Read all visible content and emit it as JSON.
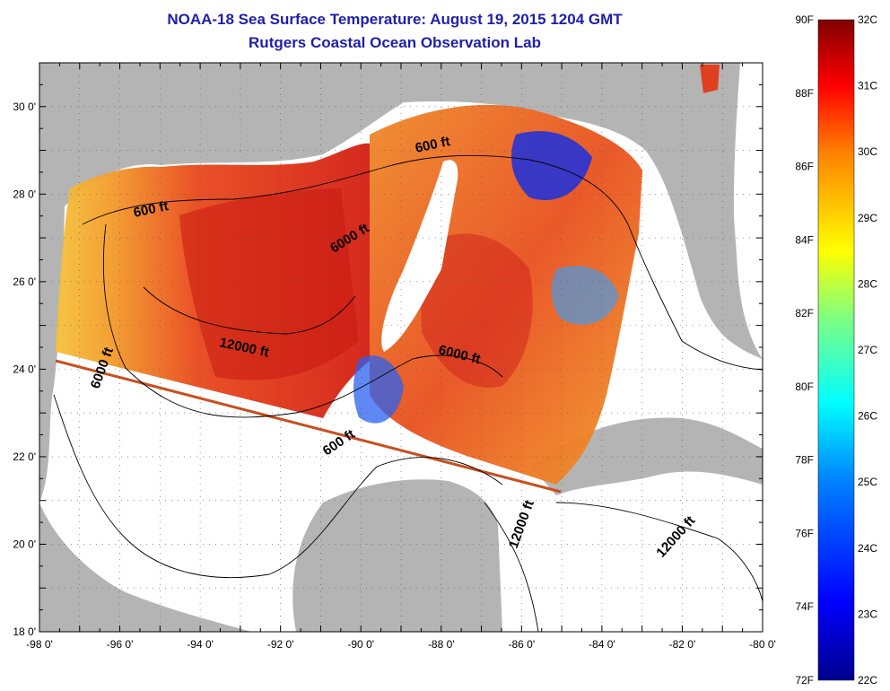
{
  "header": {
    "title": "NOAA-18 Sea Surface Temperature:  August 19, 2015 1204 GMT",
    "subtitle": "Rutgers Coastal Ocean Observation Lab"
  },
  "map": {
    "lon_range": [
      -98,
      -80
    ],
    "lat_range": [
      18,
      31
    ],
    "lon_ticks": [
      {
        "value": -98,
        "label": "-98 0'"
      },
      {
        "value": -96,
        "label": "-96 0'"
      },
      {
        "value": -94,
        "label": "-94 0'"
      },
      {
        "value": -92,
        "label": "-92 0'"
      },
      {
        "value": -90,
        "label": "-90 0'"
      },
      {
        "value": -88,
        "label": "-88 0'"
      },
      {
        "value": -86,
        "label": "-86 0'"
      },
      {
        "value": -84,
        "label": "-84 0'"
      },
      {
        "value": -82,
        "label": "-82 0'"
      },
      {
        "value": -80,
        "label": "-80 0'"
      }
    ],
    "lat_ticks": [
      {
        "value": 18,
        "label": "18 0'"
      },
      {
        "value": 20,
        "label": "20 0'"
      },
      {
        "value": 22,
        "label": "22 0'"
      },
      {
        "value": 24,
        "label": "24 0'"
      },
      {
        "value": 26,
        "label": "26 0'"
      },
      {
        "value": 28,
        "label": "28 0'"
      },
      {
        "value": 30,
        "label": "30 0'"
      }
    ],
    "contour_labels": [
      "600 ft",
      "600 ft",
      "6000 ft",
      "12000 ft",
      "6000 ft",
      "6000 ft",
      "600 ft",
      "12000 ft",
      "12000 ft"
    ],
    "land_color": "#b4b4b4",
    "water_color": "#ffffff",
    "grid": "dotted"
  },
  "colorbar": {
    "fahrenheit_labels": [
      "90F",
      "88F",
      "86F",
      "84F",
      "82F",
      "80F",
      "78F",
      "76F",
      "74F",
      "72F"
    ],
    "celsius_labels": [
      "32C",
      "31C",
      "30C",
      "29C",
      "28C",
      "27C",
      "26C",
      "25C",
      "24C",
      "23C",
      "22C"
    ],
    "range_celsius": [
      22,
      32
    ],
    "colors": [
      "#00008f",
      "#0000ff",
      "#0080ff",
      "#00ffff",
      "#80ff80",
      "#ffff00",
      "#ff8000",
      "#ff0000",
      "#800000"
    ]
  }
}
